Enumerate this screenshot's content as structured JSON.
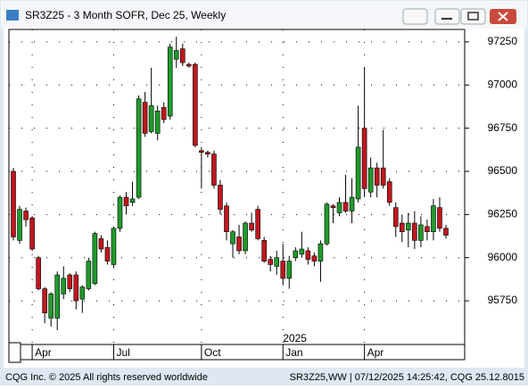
{
  "window_title": "SR3Z25 - 3 Month SOFR, Dec 25, Weekly",
  "footer_left": "CQG Inc. © 2025 All rights reserved worldwide",
  "footer_right": "SR3Z25,WW | 07/12/2025 14:25:42, CQG 25.12.8015",
  "chart_data": {
    "type": "candlestick",
    "year_label": "2025",
    "categories": [
      null,
      null,
      null,
      "Apr",
      null,
      null,
      null,
      null,
      null,
      null,
      null,
      null,
      null,
      null,
      null,
      null,
      "Jul",
      null,
      null,
      null,
      null,
      null,
      null,
      null,
      null,
      null,
      null,
      null,
      null,
      null,
      "Oct",
      null,
      null,
      null,
      null,
      null,
      null,
      null,
      null,
      null,
      null,
      null,
      null,
      "Jan",
      null,
      null,
      null,
      null,
      null,
      null,
      null,
      null,
      null,
      null,
      null,
      null,
      "Apr",
      null,
      null,
      null,
      null,
      null,
      null,
      null,
      null,
      null,
      null,
      null,
      null,
      null
    ],
    "open": [
      96500,
      96100,
      96270,
      96230,
      96000,
      95820,
      95650,
      95650,
      95790,
      95900,
      95900,
      95760,
      95820,
      95850,
      96110,
      96060,
      95960,
      96170,
      96350,
      96320,
      96350,
      96900,
      96730,
      96720,
      96870,
      96820,
      97150,
      97210,
      97120,
      97120,
      96620,
      96610,
      96600,
      96420,
      96300,
      96080,
      96120,
      96040,
      96200,
      96280,
      96100,
      95990,
      95950,
      95980,
      95880,
      96000,
      96020,
      96040,
      96010,
      95980,
      96080,
      96300,
      96260,
      96320,
      96270,
      96340,
      96750,
      96380,
      96520,
      96520,
      96440,
      96290,
      96200,
      96160,
      96200,
      96100,
      96180,
      96150,
      96290,
      96170
    ],
    "high": [
      96520,
      96300,
      96290,
      96240,
      96010,
      95830,
      95800,
      95920,
      95950,
      95910,
      95920,
      95840,
      96000,
      96150,
      96130,
      96100,
      96180,
      96360,
      96380,
      96440,
      96940,
      96960,
      97100,
      96880,
      96900,
      97240,
      97280,
      97240,
      97130,
      97130,
      96640,
      96620,
      96620,
      96450,
      96320,
      96160,
      96190,
      96210,
      96260,
      96300,
      96120,
      96010,
      96040,
      96080,
      96010,
      96060,
      96150,
      96060,
      96030,
      96100,
      96320,
      96310,
      96350,
      96480,
      96460,
      96880,
      97100,
      96580,
      96550,
      96740,
      96460,
      96320,
      96250,
      96260,
      96270,
      96240,
      96220,
      96340,
      96350,
      96190
    ],
    "low": [
      96100,
      96080,
      96180,
      96040,
      95810,
      95620,
      95600,
      95580,
      95760,
      95800,
      95700,
      95680,
      95810,
      95840,
      96030,
      95960,
      95940,
      96150,
      96250,
      96300,
      96340,
      96700,
      96720,
      96680,
      96780,
      96800,
      97100,
      97110,
      97100,
      96640,
      96400,
      96580,
      96400,
      96250,
      96100,
      96000,
      96020,
      96020,
      96150,
      96100,
      95970,
      95920,
      95900,
      95840,
      95820,
      95980,
      96000,
      95960,
      95950,
      95860,
      96070,
      96200,
      96240,
      96260,
      96200,
      96320,
      96350,
      96350,
      96350,
      96400,
      96300,
      96120,
      96090,
      96060,
      96050,
      96060,
      96100,
      96100,
      96150,
      96110
    ],
    "close": [
      96120,
      96280,
      96220,
      96050,
      95820,
      95680,
      95790,
      95900,
      95880,
      95820,
      95750,
      95830,
      95980,
      96140,
      96050,
      95980,
      96170,
      96350,
      96300,
      96340,
      96920,
      96720,
      96880,
      96850,
      96800,
      97220,
      97200,
      97130,
      97110,
      96650,
      96610,
      96600,
      96420,
      96280,
      96150,
      96150,
      96040,
      96200,
      96160,
      96110,
      95980,
      95960,
      96000,
      95880,
      95980,
      96040,
      96050,
      95990,
      95980,
      96080,
      96310,
      96290,
      96320,
      96270,
      96350,
      96640,
      96400,
      96520,
      96420,
      96420,
      96320,
      96180,
      96150,
      96200,
      96100,
      96190,
      96150,
      96300,
      96170,
      96130
    ],
    "up_color": "#1f9a2b",
    "down_color": "#c0161e",
    "ylim": [
      95497,
      97322
    ],
    "yticks": [
      95750,
      96000,
      96250,
      96500,
      96750,
      97000,
      97250
    ],
    "grid": true
  }
}
